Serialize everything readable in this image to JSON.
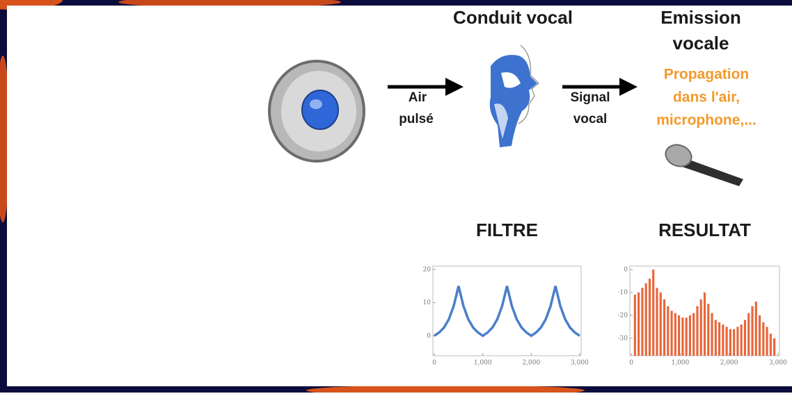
{
  "diagram": {
    "tract_title": "Conduit vocal",
    "emission_title": [
      "Emission",
      "vocale"
    ],
    "emission_note": [
      "Propagation",
      "dans l'air,",
      "microphone,..."
    ],
    "arrow1_label": [
      "Air",
      "pulsé"
    ],
    "arrow2_label": [
      "Signal",
      "vocal"
    ]
  },
  "chart_data": [
    {
      "type": "line",
      "title": "FILTRE",
      "color": "#4a7fc8",
      "x": [
        0,
        100,
        200,
        300,
        400,
        500,
        600,
        700,
        800,
        900,
        1000,
        1100,
        1200,
        1300,
        1400,
        1500,
        1600,
        1700,
        1800,
        1900,
        2000,
        2100,
        2200,
        2300,
        2400,
        2500,
        2600,
        2700,
        2800,
        2900,
        3000
      ],
      "values": [
        0,
        1,
        2.5,
        5,
        9,
        15,
        9,
        5,
        2.5,
        1,
        0,
        1,
        2.5,
        5,
        9,
        15,
        9,
        5,
        2.5,
        1,
        0,
        1,
        2.5,
        5,
        9,
        15,
        9,
        5,
        2.5,
        1,
        0
      ],
      "xlim": [
        -30,
        3030
      ],
      "ylim": [
        -6,
        21
      ],
      "xticks": [
        0,
        {
          "value": 1000,
          "label": "1,000"
        },
        {
          "value": 2000,
          "label": "2,000"
        },
        {
          "value": 3000,
          "label": "3,000"
        }
      ],
      "yticks": [
        0,
        10,
        20
      ]
    },
    {
      "type": "bar",
      "title": "RESULTAT",
      "color": "#e8663a",
      "x": [
        75,
        150,
        225,
        300,
        375,
        450,
        525,
        600,
        675,
        750,
        825,
        900,
        975,
        1050,
        1125,
        1200,
        1275,
        1350,
        1425,
        1500,
        1575,
        1650,
        1725,
        1800,
        1875,
        1950,
        2025,
        2100,
        2175,
        2250,
        2325,
        2400,
        2475,
        2550,
        2625,
        2700,
        2775,
        2850,
        2925
      ],
      "values": [
        -11,
        -10,
        -8,
        -6,
        -4,
        0,
        -8,
        -10,
        -13,
        -16,
        -18,
        -19,
        -20,
        -21,
        -21,
        -20,
        -19,
        -16,
        -13,
        -10,
        -15,
        -19,
        -22,
        -23,
        -24,
        -25,
        -26,
        -26,
        -25,
        -24,
        -22,
        -19,
        -16,
        -14,
        -20,
        -23,
        -25,
        -28,
        -30
      ],
      "xlim": [
        -30,
        3030
      ],
      "ylim": [
        -37.6,
        1.5
      ],
      "xticks": [
        0,
        {
          "value": 1000,
          "label": "1,000"
        },
        {
          "value": 2000,
          "label": "2,000"
        },
        {
          "value": 3000,
          "label": "3,000"
        }
      ],
      "yticks": [
        0,
        -10,
        -20,
        -30
      ]
    }
  ]
}
